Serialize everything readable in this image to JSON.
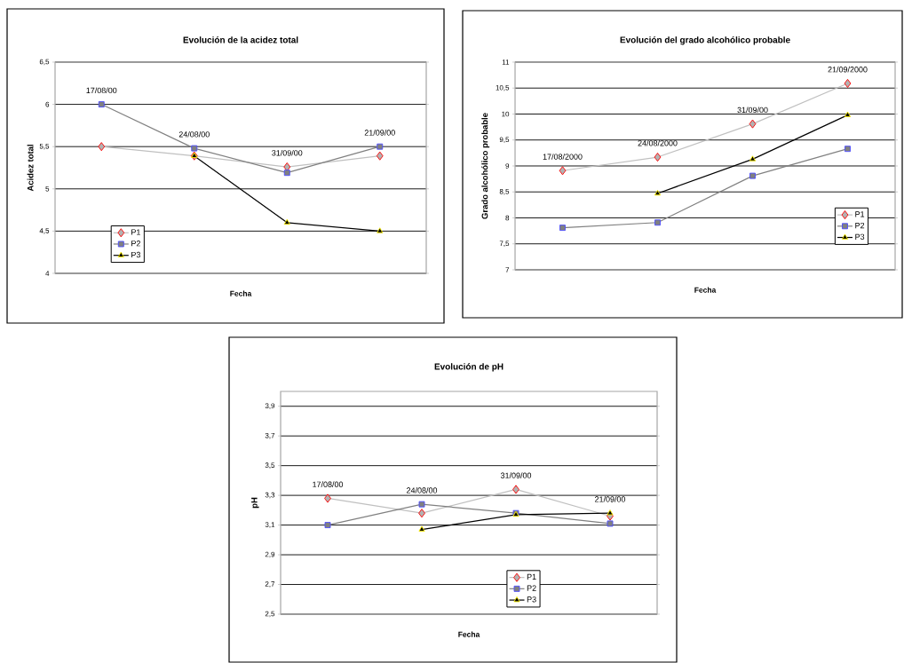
{
  "chart_data": [
    {
      "type": "line",
      "title": "Evolución de la acidez total",
      "xlabel": "Fecha",
      "ylabel": "Acidez total",
      "categories": [
        null,
        null,
        null,
        null
      ],
      "series": [
        {
          "name": "P1",
          "color": "#c0c0c0",
          "marker": "diamond",
          "values": [
            5.5,
            5.39,
            5.26,
            5.39
          ]
        },
        {
          "name": "P2",
          "color": "#808080",
          "marker": "square",
          "values": [
            6.0,
            5.48,
            5.19,
            5.5
          ]
        },
        {
          "name": "P3",
          "color": "#000000",
          "marker": "triangle",
          "values": [
            null,
            5.39,
            4.6,
            4.5
          ]
        }
      ],
      "ylim": [
        4,
        6.5
      ],
      "yticks": [
        4,
        {
          "value": 4.5,
          "label": "4,5"
        },
        5,
        {
          "value": 5.5,
          "label": "5,5"
        },
        6,
        {
          "value": 6.5,
          "label": "6,5"
        }
      ],
      "annotations": [
        "17/08/00",
        "24/08/00",
        "31/09/00",
        "21/09/00"
      ],
      "grid": "y",
      "legend": "bottom left",
      "line_style": "solid"
    },
    {
      "type": "line",
      "title": "Evolución del grado alcohólico probable",
      "xlabel": "Fecha",
      "ylabel": "Grado alcohólico probable",
      "categories": [
        null,
        null,
        null,
        null
      ],
      "series": [
        {
          "name": "P1",
          "color": "#c0c0c0",
          "marker": "diamond",
          "values": [
            8.91,
            9.17,
            9.81,
            10.59
          ]
        },
        {
          "name": "P2",
          "color": "#808080",
          "marker": "square",
          "values": [
            7.81,
            7.91,
            8.81,
            9.33
          ]
        },
        {
          "name": "P3",
          "color": "#000000",
          "marker": "triangle",
          "values": [
            null,
            8.47,
            9.13,
            9.98
          ]
        }
      ],
      "ylim": [
        7,
        11
      ],
      "yticks": [
        7,
        {
          "value": 7.5,
          "label": "7,5"
        },
        8,
        {
          "value": 8.5,
          "label": "8,5"
        },
        9,
        {
          "value": 9.5,
          "label": "9,5"
        },
        10,
        {
          "value": 10.5,
          "label": "10,5"
        },
        11
      ],
      "annotations": [
        "17/08/2000",
        "24/08/2000",
        "31/09/00",
        "21/09/2000"
      ],
      "grid": "y",
      "legend": "right",
      "line_style": "solid"
    },
    {
      "type": "line",
      "title": "Evolución de pH",
      "xlabel": "Fecha",
      "ylabel": "pH",
      "categories": [
        null,
        null,
        null,
        null
      ],
      "series": [
        {
          "name": "P1",
          "color": "#c0c0c0",
          "marker": "diamond",
          "values": [
            3.28,
            3.18,
            3.34,
            3.16
          ]
        },
        {
          "name": "P2",
          "color": "#808080",
          "marker": "square",
          "values": [
            3.1,
            3.24,
            3.18,
            3.11
          ]
        },
        {
          "name": "P3",
          "color": "#000000",
          "marker": "triangle",
          "values": [
            null,
            3.07,
            3.17,
            3.18
          ]
        }
      ],
      "ylim": [
        2.5,
        4.0
      ],
      "yticks": [
        {
          "value": 2.5,
          "label": "2,5"
        },
        {
          "value": 2.7,
          "label": "2,7"
        },
        {
          "value": 2.9,
          "label": "2,9"
        },
        {
          "value": 3.1,
          "label": "3,1"
        },
        {
          "value": 3.3,
          "label": "3,3"
        },
        {
          "value": 3.5,
          "label": "3,5"
        },
        {
          "value": 3.7,
          "label": "3,7"
        },
        {
          "value": 3.9,
          "label": "3,9"
        }
      ],
      "annotations": [
        "17/08/00",
        "24/08/00",
        "31/09/00",
        "21/09/00"
      ],
      "grid": "y",
      "legend": "bottom",
      "line_style": "solid"
    }
  ]
}
